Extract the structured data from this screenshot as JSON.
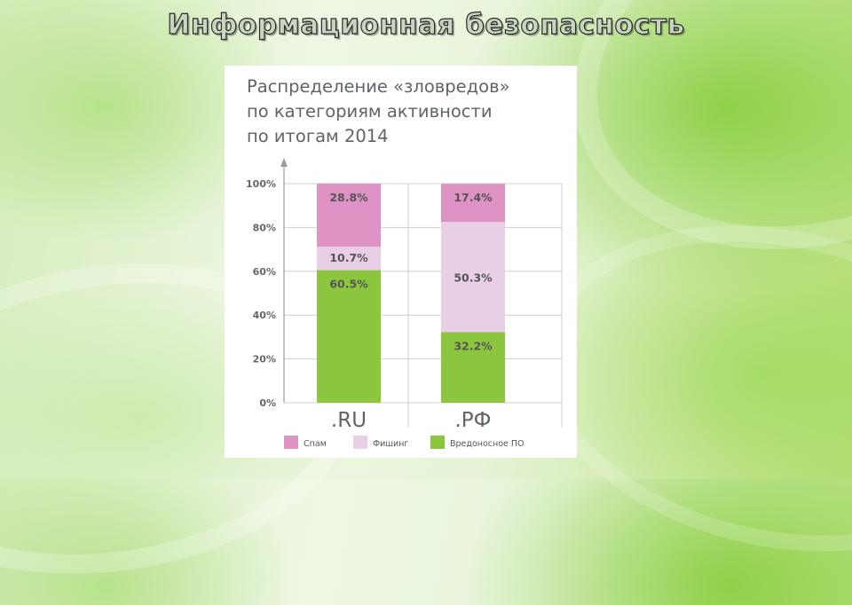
{
  "slide": {
    "title": "Информационная безопасность"
  },
  "chart_heading_lines": [
    "Распределение «зловредов»",
    "по категориям активности",
    "по итогам 2014"
  ],
  "colors": {
    "spam": "#df93c4",
    "phishing": "#e9cfe5",
    "malware": "#8cc63f",
    "axis_text": "#666666",
    "label_text": "#555555"
  },
  "chart_data": {
    "type": "bar",
    "stacked": true,
    "title": "Распределение «зловредов» по категориям активности по итогам 2014",
    "categories": [
      ".RU",
      ".РФ"
    ],
    "series": [
      {
        "name": "Вредоносное ПО",
        "values": [
          60.5,
          32.2
        ],
        "labels": [
          "60.5%",
          "32.2%"
        ],
        "color": "#8cc63f"
      },
      {
        "name": "Фишинг",
        "values": [
          10.7,
          50.3
        ],
        "labels": [
          "10.7%",
          "50.3%"
        ],
        "color": "#e9cfe5"
      },
      {
        "name": "Спам",
        "values": [
          28.8,
          17.4
        ],
        "labels": [
          "28.8%",
          "17.4%"
        ],
        "color": "#df93c4"
      }
    ],
    "ylim": [
      0,
      100
    ],
    "yticks": [
      "0%",
      "20%",
      "40%",
      "60%",
      "80%",
      "100%"
    ],
    "grid": true,
    "legend": {
      "position": "bottom",
      "entries": [
        {
          "label": "Спам",
          "color": "#df93c4"
        },
        {
          "label": "Фишинг",
          "color": "#e9cfe5"
        },
        {
          "label": "Вредоносное ПО",
          "color": "#8cc63f"
        }
      ]
    }
  }
}
